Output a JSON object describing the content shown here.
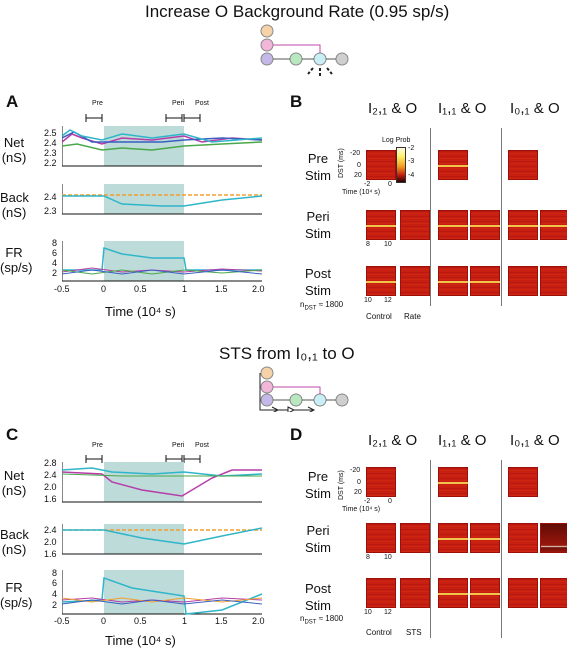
{
  "top": {
    "title": "Increase O Background Rate (0.95 sp/s)",
    "panel_a": "A",
    "panel_b": "B",
    "epochs": [
      "Pre",
      "Peri",
      "Post"
    ],
    "traces": [
      {
        "ylabel_1": "Net",
        "ylabel_2": "(nS)",
        "ticks": [
          "2.5",
          "2.4",
          "2.3",
          "2.2"
        ]
      },
      {
        "ylabel_1": "Back",
        "ylabel_2": "(nS)",
        "ticks": [
          "2.4",
          "2.3"
        ]
      },
      {
        "ylabel_1": "FR",
        "ylabel_2": "(sp/s)",
        "ticks": [
          "8",
          "6",
          "4",
          "2"
        ]
      }
    ],
    "xticks": [
      "-0.5",
      "0",
      "0.5",
      "1",
      "1.5",
      "2.0"
    ],
    "xlabel": "Time (10⁴ s)",
    "columns": [
      "I₂,₁ & O",
      "I₁,₁ & O",
      "I₀,₁ & O"
    ],
    "rows": [
      {
        "l1": "Pre",
        "l2": "Stim"
      },
      {
        "l1": "Peri",
        "l2": "Stim"
      },
      {
        "l1": "Post",
        "l2": "Stim"
      }
    ],
    "colorbar_label": "Log Prob",
    "colorbar_ticks": [
      "-2",
      "-3",
      "-4"
    ],
    "dst_label": "DST (ms)",
    "dst_ticks": [
      "-20",
      "0",
      "20"
    ],
    "time_ticks": [
      "-2",
      "0"
    ],
    "time_label": "Time (10⁴ s)",
    "peri_ticks": [
      "8",
      "10"
    ],
    "post_ticks": [
      "10",
      "12"
    ],
    "n_label": "n",
    "n_sub": "DST",
    "n_value": "≈ 1800",
    "cond_1": "Control",
    "cond_2": "Rate"
  },
  "bottom": {
    "title": "STS from I₀,₁ to O",
    "panel_c": "C",
    "panel_d": "D",
    "epochs": [
      "Pre",
      "Peri",
      "Post"
    ],
    "traces": [
      {
        "ylabel_1": "Net",
        "ylabel_2": "(nS)",
        "ticks": [
          "2.8",
          "2.4",
          "2.0",
          "1.6"
        ]
      },
      {
        "ylabel_1": "Back",
        "ylabel_2": "(nS)",
        "ticks": [
          "2.4",
          "2.0",
          "1.6"
        ]
      },
      {
        "ylabel_1": "FR",
        "ylabel_2": "(sp/s)",
        "ticks": [
          "8",
          "6",
          "4",
          "2"
        ]
      }
    ],
    "xticks": [
      "-0.5",
      "0",
      "0.5",
      "1",
      "1.5",
      "2.0"
    ],
    "xlabel": "Time (10⁴ s)",
    "columns": [
      "I₂,₁ & O",
      "I₁,₁ & O",
      "I₀,₁ & O"
    ],
    "rows": [
      {
        "l1": "Pre",
        "l2": "Stim"
      },
      {
        "l1": "Peri",
        "l2": "Stim"
      },
      {
        "l1": "Post",
        "l2": "Stim"
      }
    ],
    "dst_label": "DST (ms)",
    "dst_ticks": [
      "-20",
      "0",
      "20"
    ],
    "time_ticks": [
      "-2",
      "0"
    ],
    "time_label": "Time (10⁴ s)",
    "peri_ticks": [
      "8",
      "10"
    ],
    "post_ticks": [
      "10",
      "12"
    ],
    "n_label": "n",
    "n_sub": "DST",
    "n_value": "≈ 1800",
    "cond_1": "Control",
    "cond_2": "STS"
  },
  "colors": {
    "shade": "#bddbd9",
    "cyan": "#2fb5c9",
    "magenta": "#b63da8",
    "orange": "#f0a030",
    "green": "#4aa84a",
    "blue": "#3a5fc0"
  }
}
